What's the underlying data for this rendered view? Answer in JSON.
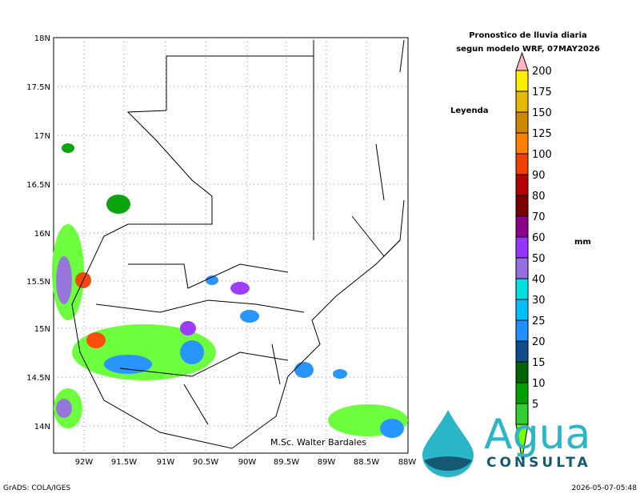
{
  "title": [
    "Pronostico de lluvia diaria",
    "segun modelo WRF,  07MAY2026"
  ],
  "legend_label": "Leyenda",
  "unit": "mm",
  "colorbar": {
    "labels": [
      200,
      175,
      150,
      125,
      100,
      90,
      80,
      70,
      60,
      50,
      40,
      30,
      25,
      20,
      15,
      10,
      5
    ],
    "colors": [
      "#ffee00",
      "#e6b800",
      "#cc8800",
      "#ff7f00",
      "#f04000",
      "#b40000",
      "#7a0000",
      "#8c008c",
      "#9933ff",
      "#9370db",
      "#00e0e0",
      "#00bfff",
      "#1e90ff",
      "#104e8b",
      "#006400",
      "#00a000",
      "#32cd32"
    ],
    "top_color": "#ffb6c1",
    "bottom_color": "#7cfc00"
  },
  "lat_labels": [
    "18N",
    "17.5N",
    "17N",
    "16.5N",
    "16N",
    "15.5N",
    "15N",
    "14.5N",
    "14N"
  ],
  "lon_labels": [
    "92W",
    "91.5W",
    "91W",
    "90.5W",
    "90W",
    "89.5W",
    "89W",
    "88.5W",
    "88W"
  ],
  "credit": "M.Sc. Walter Bardales",
  "logo": {
    "word": "Agua",
    "sub": "CONSULTA"
  },
  "footer": {
    "left": "GrADS: COLA/IGES",
    "right": "2026-05-07-05:48"
  }
}
